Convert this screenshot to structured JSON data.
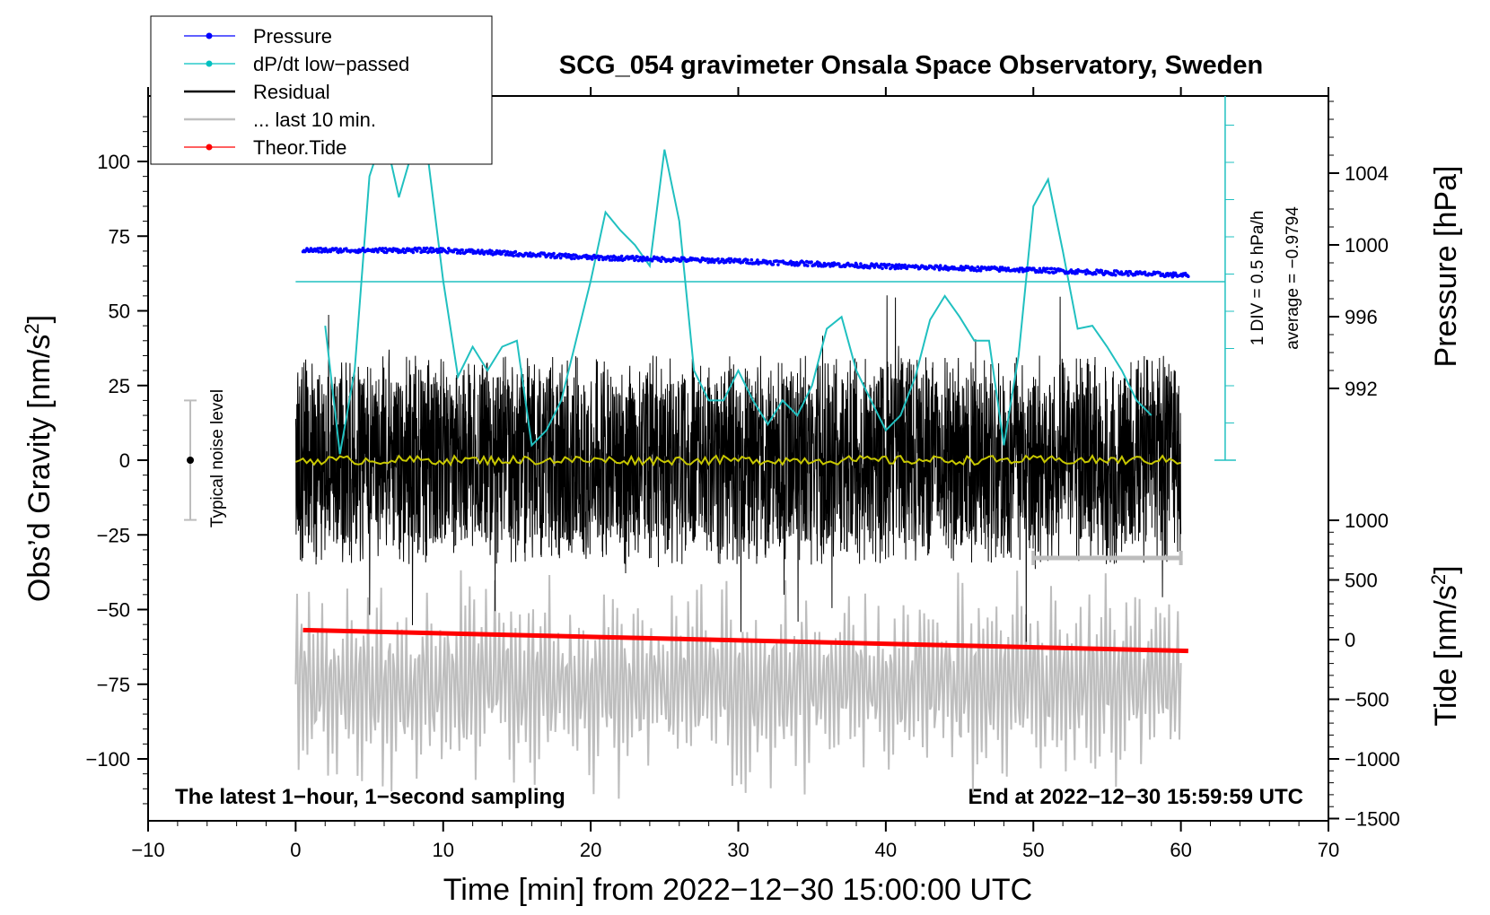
{
  "chart_data": {
    "type": "line",
    "title": "SCG_054 gravimeter Onsala Space Observatory, Sweden",
    "xlabel": "Time [min] from 2022−12−30 15:00:00 UTC",
    "ylabel_left": "Obs’d Gravity [nm/s",
    "ylabel_left_sup": "2",
    "ylabel_left_close": "]",
    "ylabel_right_top": "Pressure [hPa]",
    "ylabel_right_bottom": "Tide [nm/s",
    "ylabel_right_bottom_sup": "2",
    "ylabel_right_bottom_close": "]",
    "xlim": [
      -10,
      70
    ],
    "ylim_left": [
      -120,
      120
    ],
    "x_ticks": [
      -10,
      0,
      10,
      20,
      30,
      40,
      50,
      60,
      70
    ],
    "x_tick_labels": [
      "−10",
      "0",
      "10",
      "20",
      "30",
      "40",
      "50",
      "60",
      "70"
    ],
    "y_ticks_left": [
      100,
      75,
      50,
      25,
      0,
      -25,
      -50,
      -75,
      -100
    ],
    "y_tick_labels_left": [
      "100",
      "75",
      "50",
      "25",
      "0",
      "−25",
      "−50",
      "−75",
      "−100"
    ],
    "pressure_ticks": [
      1004,
      1000,
      996,
      992
    ],
    "pressure_tick_labels": [
      "1004",
      "1000",
      "996",
      "992"
    ],
    "tide_ticks": [
      1000,
      500,
      0,
      -500,
      -1000,
      -1500
    ],
    "tide_tick_labels": [
      "1000",
      "500",
      "0",
      "−500",
      "−1000",
      "−1500"
    ],
    "annotation_left": "The latest 1−hour, 1−second sampling",
    "annotation_right": "End at 2022−12−30 15:59:59 UTC",
    "noise_label": "Typical noise level",
    "noise_level": [
      -20,
      20
    ],
    "dpdt_scale": "1 DIV = 0.5 hPa/h",
    "dpdt_average": "average = −0.9794",
    "legend": [
      {
        "label": "Pressure",
        "color": "#0000ff",
        "marker": "dot"
      },
      {
        "label": "dP/dt low−passed",
        "color": "#00c0c0",
        "marker": "dot"
      },
      {
        "label": "Residual",
        "color": "#000000",
        "marker": "line"
      },
      {
        "label": "... last 10 min.",
        "color": "#c0c0c0",
        "marker": "line"
      },
      {
        "label": "Theor.Tide",
        "color": "#ff0000",
        "marker": "dot"
      }
    ],
    "series": [
      {
        "name": "Pressure",
        "units": "hPa",
        "x": [
          0.5,
          10,
          20,
          30,
          40,
          50,
          60.5
        ],
        "values": [
          999.7,
          999.7,
          999.3,
          999.1,
          998.8,
          998.6,
          998.3
        ]
      },
      {
        "name": "dP/dt low−passed",
        "units": "div",
        "x": [
          2,
          3,
          4,
          5,
          6,
          7,
          8,
          9,
          10,
          11,
          12,
          13,
          14,
          15,
          16,
          17,
          18,
          19,
          20,
          21,
          22,
          23,
          24,
          25,
          26,
          27,
          28,
          29,
          30,
          31,
          32,
          33,
          34,
          35,
          36,
          37,
          38,
          39,
          40,
          41,
          42,
          43,
          44,
          45,
          46,
          47,
          48,
          49,
          50,
          51,
          52,
          53,
          54,
          55,
          56,
          57,
          58
        ],
        "values": [
          45,
          2,
          30,
          95,
          110,
          88,
          105,
          100,
          60,
          28,
          38,
          30,
          38,
          40,
          5,
          10,
          20,
          40,
          60,
          83,
          77,
          72,
          65,
          104,
          80,
          30,
          20,
          20,
          30,
          20,
          12,
          20,
          15,
          25,
          44,
          48,
          30,
          20,
          10,
          15,
          28,
          47,
          55,
          48,
          40,
          40,
          5,
          35,
          85,
          94,
          70,
          44,
          45,
          38,
          30,
          20,
          15
        ]
      },
      {
        "name": "Residual",
        "units": "nm/s2",
        "x_range": [
          0,
          60
        ],
        "amplitude": 35
      },
      {
        "name": "... last 10 min.",
        "units": "nm/s2",
        "x_range": [
          0,
          60
        ],
        "center": -75,
        "amplitude": 30
      },
      {
        "name": "Theor.Tide",
        "units": "nm/s2",
        "x": [
          0.5,
          60.5
        ],
        "values": [
          80,
          -95
        ]
      }
    ]
  }
}
